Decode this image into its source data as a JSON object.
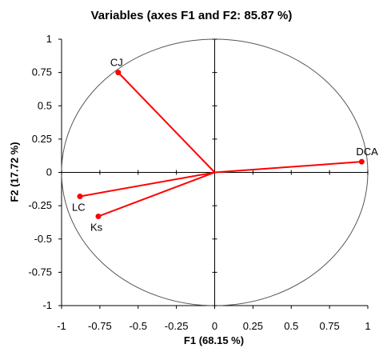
{
  "chart_data": {
    "type": "scatter",
    "title": "Variables (axes F1 and F2: 85.87 %)",
    "xlabel": "F1 (68.15 %)",
    "ylabel": "F2 (17.72 %)",
    "xlim": [
      -1,
      1
    ],
    "ylim": [
      -1,
      1
    ],
    "xticks": [
      "-1",
      "-0.75",
      "-0.5",
      "-0.25",
      "0",
      "0.25",
      "0.5",
      "0.75",
      "1"
    ],
    "yticks": [
      "1",
      "0.75",
      "0.5",
      "0.25",
      "0",
      "-0.25",
      "-0.5",
      "-0.75",
      "-1"
    ],
    "correlation_circle": true,
    "grid": false,
    "series": [
      {
        "points": [
          {
            "label": "CJ",
            "x": -0.63,
            "y": 0.75
          },
          {
            "label": "DCA",
            "x": 0.96,
            "y": 0.08
          },
          {
            "label": "LC",
            "x": -0.88,
            "y": -0.18
          },
          {
            "label": "Ks",
            "x": -0.76,
            "y": -0.33
          }
        ]
      }
    ],
    "colors": {
      "vector": "#ff0000",
      "axis": "#000000",
      "circle": "#555555"
    }
  }
}
